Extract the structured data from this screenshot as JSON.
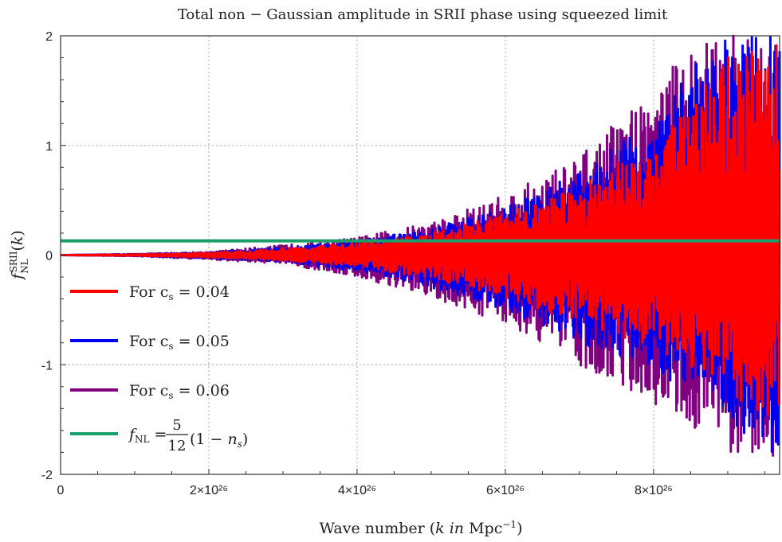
{
  "chart_data": {
    "type": "line",
    "title": "Total non − Gaussian amplitude in SRII phase using squeezed limit",
    "xlabel": "Wave number (k in Mpc⁻¹)",
    "ylabel": "f_NL^SRII(k)",
    "xlim": [
      0,
      9.7e+26
    ],
    "ylim": [
      -2,
      2
    ],
    "grid": true,
    "legend_position": "left-bottom",
    "x_ticks": [
      {
        "value": 0,
        "label": "0"
      },
      {
        "value": 2e+26,
        "label": "2×10²⁶"
      },
      {
        "value": 4e+26,
        "label": "4×10²⁶"
      },
      {
        "value": 6e+26,
        "label": "6×10²⁶"
      },
      {
        "value": 8e+26,
        "label": "8×10²⁶"
      }
    ],
    "y_ticks": [
      {
        "value": -2,
        "label": "-2"
      },
      {
        "value": -1,
        "label": "-1"
      },
      {
        "value": 0,
        "label": "0"
      },
      {
        "value": 1,
        "label": "1"
      },
      {
        "value": 2,
        "label": "2"
      }
    ],
    "series": [
      {
        "name": "For cs = 0.06",
        "color": "#800080",
        "kind": "oscillation",
        "envelope": {
          "k": [
            0,
            1e+26,
            2e+26,
            3e+26,
            4e+26,
            5e+26,
            6e+26,
            7e+26,
            8e+26,
            8.6e+26,
            9e+26,
            9.7e+26
          ],
          "upper": [
            0.0,
            0.01,
            0.03,
            0.09,
            0.16,
            0.3,
            0.55,
            0.9,
            1.55,
            2.0,
            2.0,
            2.0
          ],
          "lower": [
            0.0,
            -0.01,
            -0.04,
            -0.08,
            -0.2,
            -0.4,
            -0.62,
            -1.0,
            -1.35,
            -1.6,
            -1.8,
            -2.0
          ]
        }
      },
      {
        "name": "For cs = 0.05",
        "color": "#0000ee",
        "kind": "oscillation",
        "envelope": {
          "k": [
            0,
            1e+26,
            2e+26,
            3e+26,
            4e+26,
            5e+26,
            6e+26,
            7e+26,
            8e+26,
            8.6e+26,
            9e+26,
            9.7e+26
          ],
          "upper": [
            0.0,
            0.008,
            0.025,
            0.07,
            0.13,
            0.24,
            0.45,
            0.75,
            1.25,
            1.8,
            2.0,
            2.0
          ],
          "lower": [
            0.0,
            -0.008,
            -0.03,
            -0.06,
            -0.15,
            -0.3,
            -0.5,
            -0.8,
            -1.05,
            -1.3,
            -1.5,
            -1.9
          ]
        }
      },
      {
        "name": "For cs = 0.04",
        "color": "#ff0000",
        "kind": "oscillation",
        "envelope": {
          "k": [
            0,
            1e+26,
            2e+26,
            3e+26,
            4e+26,
            5e+26,
            6e+26,
            7e+26,
            8e+26,
            8.6e+26,
            9e+26,
            9.7e+26
          ],
          "upper": [
            0.0,
            0.006,
            0.02,
            0.06,
            0.11,
            0.2,
            0.38,
            0.62,
            1.05,
            1.5,
            1.8,
            2.0
          ],
          "lower": [
            0.0,
            -0.006,
            -0.02,
            -0.05,
            -0.1,
            -0.22,
            -0.38,
            -0.62,
            -0.85,
            -1.05,
            -1.25,
            -1.6
          ]
        }
      },
      {
        "name": "f_NL = 5/12 (1 − n_s)",
        "color": "#1a9e6a",
        "kind": "constant",
        "x": [
          0,
          9.7e+26
        ],
        "values": [
          0.13,
          0.13
        ]
      }
    ],
    "legend": [
      {
        "prefix": "For c",
        "sub": "s",
        "rest": " = 0.04",
        "color": "#ff0000"
      },
      {
        "prefix": "For c",
        "sub": "s",
        "rest": " = 0.05",
        "color": "#0000ee"
      },
      {
        "prefix": "For c",
        "sub": "s",
        "rest": " = 0.06",
        "color": "#800080"
      },
      {
        "prefix": "f",
        "sub": "NL",
        "rest": " = ",
        "frac_num": "5",
        "frac_den": "12",
        "tail": "(1 − n",
        "tail_sub": "s",
        "tail_end": ")",
        "color": "#1a9e6a"
      }
    ]
  }
}
